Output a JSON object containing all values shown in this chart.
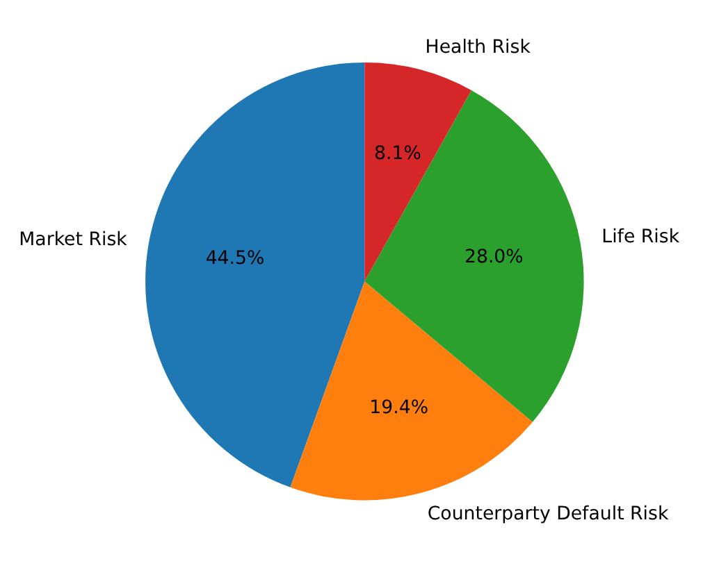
{
  "chart_data": {
    "type": "pie",
    "categories": [
      "Market Risk",
      "Counterparty Default Risk",
      "Life Risk",
      "Health Risk"
    ],
    "values": [
      44.5,
      19.4,
      28.0,
      8.1
    ],
    "colors": [
      "#1f77b4",
      "#ff7f0e",
      "#2ca02c",
      "#d62728"
    ],
    "value_labels": [
      "44.5%",
      "19.4%",
      "28.0%",
      "8.1%"
    ]
  }
}
